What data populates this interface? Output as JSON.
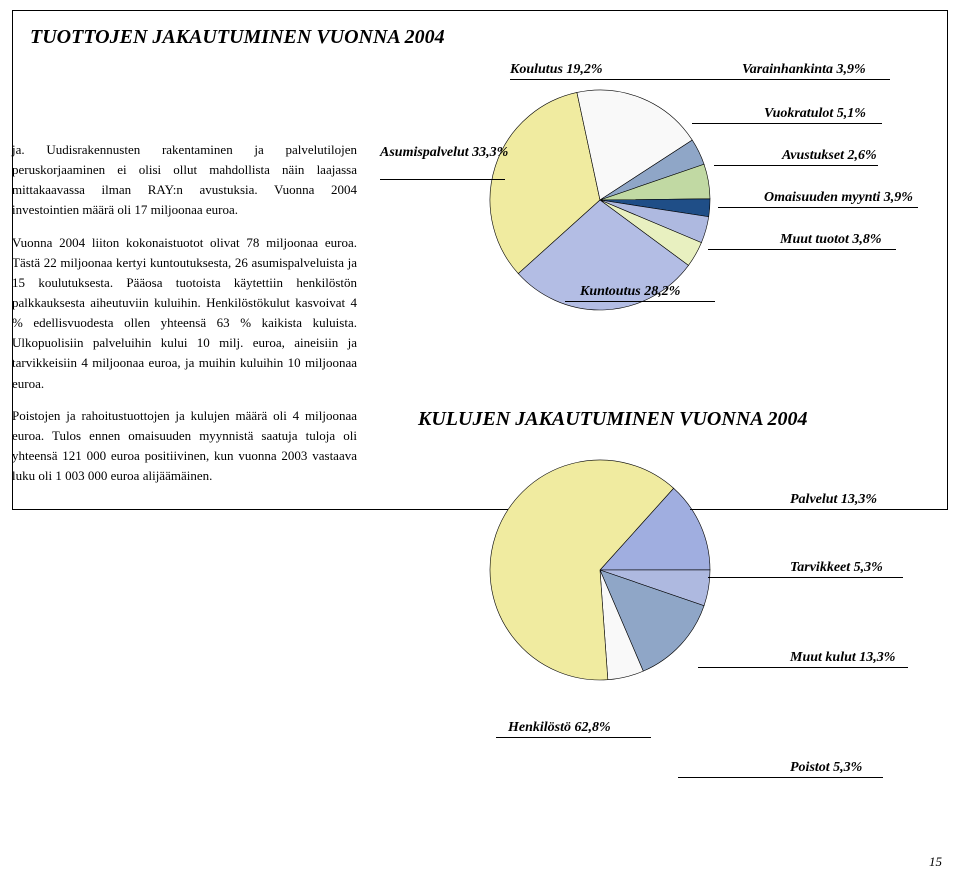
{
  "chart1": {
    "title": "TUOTTOJEN JAKAUTUMINEN VUONNA 2004",
    "type": "pie",
    "background_color": "#ffffff",
    "stroke_color": "#000000",
    "stroke_width": 0.6,
    "title_fontsize": 20,
    "label_fontsize": 14,
    "slices": [
      {
        "label": "Asumispalvelut 33,3%",
        "value": 33.3,
        "color": "#f0eba0"
      },
      {
        "label": "Koulutus 19,2%",
        "value": 19.2,
        "color": "#f9f9f9"
      },
      {
        "label": "Varainhankinta 3,9%",
        "value": 3.9,
        "color": "#8fa6c7"
      },
      {
        "label": "Vuokratulot 5,1%",
        "value": 5.1,
        "color": "#c1d9a3"
      },
      {
        "label": "Avustukset 2,6%",
        "value": 2.6,
        "color": "#1f4e87"
      },
      {
        "label": "Omaisuuden myynti 3,9%",
        "value": 3.9,
        "color": "#aeb9e0"
      },
      {
        "label": "Muut tuotot 3,8%",
        "value": 3.8,
        "color": "#e8f0c0"
      },
      {
        "label": "Kuntoutus 28,2%",
        "value": 28.2,
        "color": "#b3bde4"
      }
    ]
  },
  "chart2": {
    "title": "KULUJEN JAKAUTUMINEN VUONNA 2004",
    "type": "pie",
    "background_color": "#ffffff",
    "stroke_color": "#000000",
    "stroke_width": 0.6,
    "title_fontsize": 20,
    "label_fontsize": 14,
    "slices": [
      {
        "label": "Palvelut 13,3%",
        "value": 13.3,
        "color": "#a0aee0"
      },
      {
        "label": "Tarvikkeet 5,3%",
        "value": 5.3,
        "color": "#aeb9e0"
      },
      {
        "label": "Muut kulut 13,3%",
        "value": 13.3,
        "color": "#8fa6c7"
      },
      {
        "label": "Poistot 5,3%",
        "value": 5.3,
        "color": "#f9f9f9"
      },
      {
        "label": "Henkilöstö 62,8%",
        "value": 62.8,
        "color": "#f0eba0"
      }
    ]
  },
  "body_text": {
    "p1": "ja. Uudisrakennusten rakentaminen ja palvelutilojen peruskorjaaminen ei olisi ollut mahdollista näin laajassa mittakaavassa ilman RAY:n avustuksia. Vuonna 2004 investointien määrä oli 17 miljoonaa euroa.",
    "p2": "Vuonna 2004 liiton kokonaistuotot olivat 78 miljoonaa euroa. Tästä 22 miljoonaa kertyi kuntoutuksesta, 26 asumispalveluista ja 15 koulutuksesta. Pääosa tuotoista käytettiin henkilöstön palkkauksesta aiheutuviin kuluihin. Henkilöstökulut kasvoivat 4 % edellisvuodesta ollen yhteensä 63 % kaikista kuluista. Ulkopuolisiin palveluihin kului 10 milj. euroa, aineisiin ja tarvikkeisiin 4 miljoonaa euroa, ja muihin kuluihin 10 miljoonaa euroa.",
    "p3": "Poistojen ja rahoitustuottojen ja kulujen määrä oli 4 miljoonaa euroa. Tulos ennen omaisuuden myynnistä saatuja tuloja oli yhteensä 121 000 euroa positiivinen, kun vuonna 2003 vastaava luku oli 1 003 000 euroa alijäämäinen."
  },
  "page_number": "15",
  "colors": {
    "text": "#000000",
    "rule": "#000000"
  }
}
